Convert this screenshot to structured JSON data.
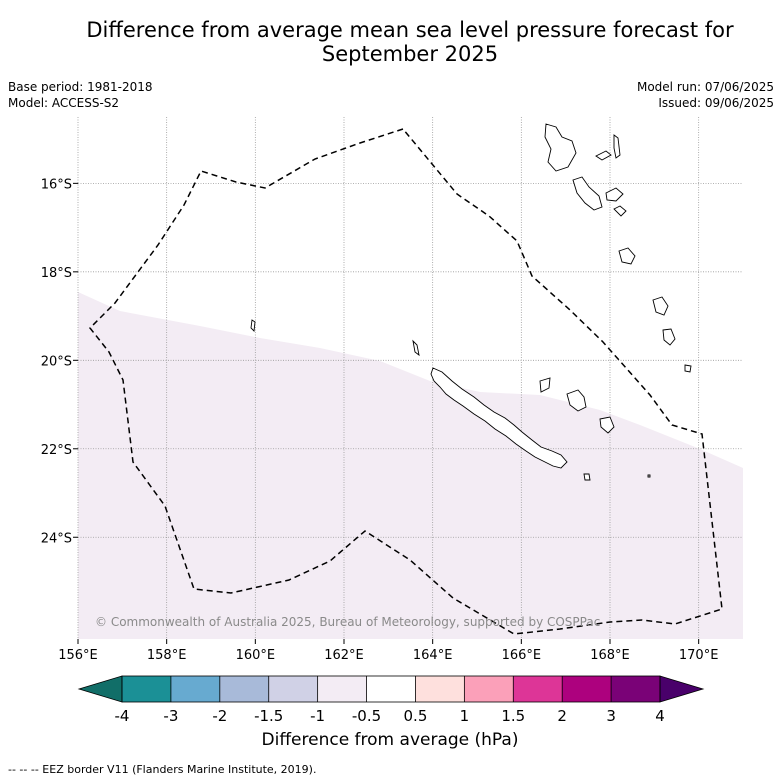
{
  "title": "Difference from average mean sea level pressure forecast for September 2025",
  "meta_left": {
    "base_period": "Base period: 1981-2018",
    "model": "Model: ACCESS-S2"
  },
  "meta_right": {
    "model_run": "Model run: 07/06/2025",
    "issued": "Issued: 09/06/2025"
  },
  "map": {
    "lon_range": [
      156,
      171
    ],
    "lat_range": [
      -26.3,
      -14.5
    ],
    "lat_ticks": [
      {
        "value": -16,
        "label": "16°S"
      },
      {
        "value": -18,
        "label": "18°S"
      },
      {
        "value": -20,
        "label": "20°S"
      },
      {
        "value": -22,
        "label": "22°S"
      },
      {
        "value": -24,
        "label": "24°S"
      }
    ],
    "lon_ticks": [
      {
        "value": 156,
        "label": "156°E"
      },
      {
        "value": 158,
        "label": "158°E"
      },
      {
        "value": 160,
        "label": "160°E"
      },
      {
        "value": 162,
        "label": "162°E"
      },
      {
        "value": 164,
        "label": "164°E"
      },
      {
        "value": 166,
        "label": "166°E"
      },
      {
        "value": 168,
        "label": "168°E"
      },
      {
        "value": 170,
        "label": "170°E"
      }
    ],
    "anomaly_region_color": "#f3ecf4",
    "copyright": "© Commonwealth of Australia 2025, Bureau of Meteorology, supported by COSPPac"
  },
  "colorbar": {
    "colors": [
      "#116e68",
      "#1b9096",
      "#67aad0",
      "#a8bad9",
      "#d0d1e6",
      "#f3ecf4",
      "#ffffff",
      "#fee0dd",
      "#fba0b9",
      "#dd3597",
      "#ad017e",
      "#7a0277",
      "#49006a"
    ],
    "labels": [
      "-4",
      "-3",
      "-2",
      "-1.5",
      "-1",
      "-0.5",
      "0.5",
      "1",
      "1.5",
      "2",
      "3",
      "4"
    ],
    "title": "Difference from average (hPa)"
  },
  "footer": "--  --  -- EEZ border V11 (Flanders Marine Institute, 2019)."
}
